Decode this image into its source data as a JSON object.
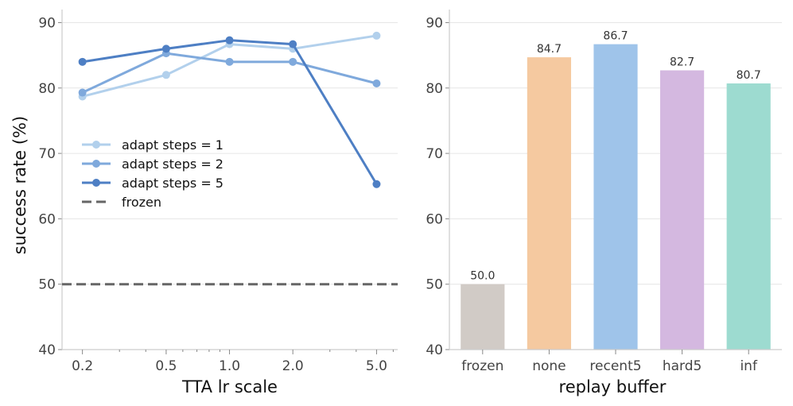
{
  "chart_data": [
    {
      "type": "line",
      "xlabel": "TTA lr scale",
      "ylabel": "success rate (%)",
      "xscale": "log",
      "x": [
        0.2,
        0.5,
        1.0,
        2.0,
        5.0
      ],
      "xtick_labels": [
        "0.2",
        "0.5",
        "1.0",
        "2.0",
        "5.0"
      ],
      "ylim": [
        40,
        92
      ],
      "yticks": [
        40,
        50,
        60,
        70,
        80,
        90
      ],
      "ytick_labels": [
        "40",
        "50",
        "60",
        "70",
        "80",
        "90"
      ],
      "grid": "horizontal",
      "legend": "center-left",
      "series": [
        {
          "name": "adapt steps = 1",
          "values": [
            78.7,
            82.0,
            86.7,
            86.0,
            88.0
          ],
          "color": "#b2d0ec"
        },
        {
          "name": "adapt steps = 2",
          "values": [
            79.3,
            85.3,
            84.0,
            84.0,
            80.7
          ],
          "color": "#7fa9dc"
        },
        {
          "name": "adapt steps = 5",
          "values": [
            84.0,
            86.0,
            87.3,
            86.7,
            65.3
          ],
          "color": "#4e7fc4"
        }
      ],
      "reference": {
        "name": "frozen",
        "value": 50.0,
        "color": "#666666",
        "style": "dashed"
      }
    },
    {
      "type": "bar",
      "xlabel": "replay buffer",
      "ylabel": "",
      "categories": [
        "frozen",
        "none",
        "recent5",
        "hard5",
        "inf"
      ],
      "values": [
        50.0,
        84.7,
        86.7,
        82.7,
        80.7
      ],
      "value_labels": [
        "50.0",
        "84.7",
        "86.7",
        "82.7",
        "80.7"
      ],
      "colors": [
        "#d1cbc6",
        "#f5c9a0",
        "#9fc4ea",
        "#d4b8e0",
        "#9ddbd0"
      ],
      "ylim": [
        40,
        92
      ],
      "yticks": [
        40,
        50,
        60,
        70,
        80,
        90
      ],
      "ytick_labels": [
        "40",
        "50",
        "60",
        "70",
        "80",
        "90"
      ],
      "grid": "horizontal"
    }
  ]
}
